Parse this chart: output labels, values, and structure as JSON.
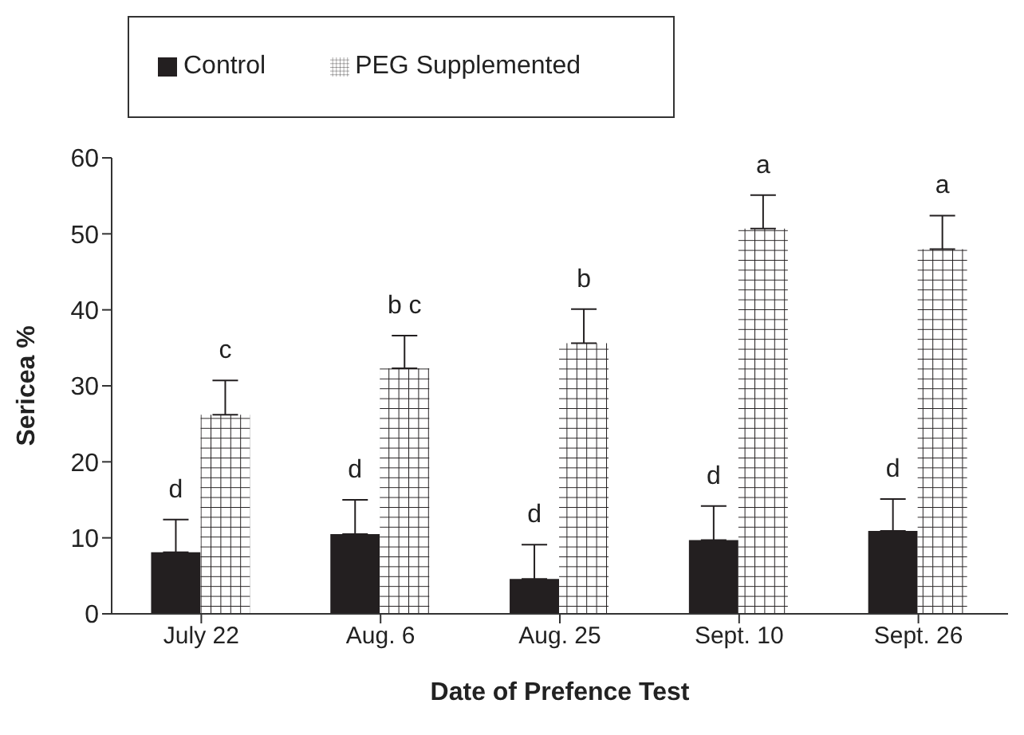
{
  "chart_data": {
    "type": "bar",
    "xlabel": "Date of Prefence Test",
    "ylabel": "Sericea %",
    "categories": [
      "July 22",
      "Aug. 6",
      "Aug. 25",
      "Sept. 10",
      "Sept. 26"
    ],
    "series": [
      {
        "name": "Control",
        "color": "#231f20",
        "values": [
          8.1,
          10.5,
          4.6,
          9.7,
          10.9
        ],
        "errors": [
          [
            8.1,
            12.4
          ],
          [
            10.5,
            15.0
          ],
          [
            4.6,
            9.1
          ],
          [
            9.7,
            14.2
          ],
          [
            10.9,
            15.1
          ]
        ],
        "value_labels": [
          "d",
          "d",
          "d",
          "d",
          "d"
        ]
      },
      {
        "name": "PEG Supplemented",
        "color": "#ffffff",
        "values": [
          26.2,
          32.3,
          35.6,
          50.7,
          48.0
        ],
        "errors": [
          [
            26.2,
            30.7
          ],
          [
            32.3,
            36.6
          ],
          [
            35.6,
            40.1
          ],
          [
            50.7,
            55.1
          ],
          [
            48.0,
            52.4
          ]
        ],
        "value_labels": [
          "c",
          "b c",
          "b",
          "a",
          "a"
        ]
      }
    ],
    "ylim": [
      0,
      60
    ],
    "yticks": [
      0,
      10,
      20,
      30,
      40,
      50,
      60
    ],
    "grid": false,
    "legend": "top left"
  }
}
